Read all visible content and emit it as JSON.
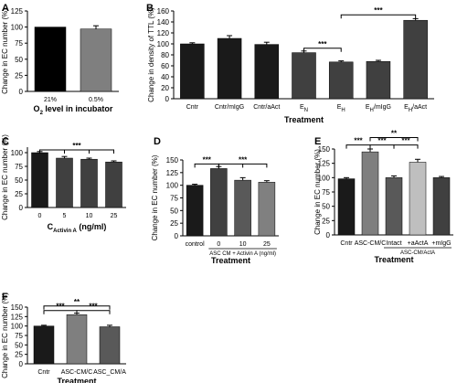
{
  "chart_data": [
    {
      "panel": "A",
      "type": "bar",
      "categories": [
        "21%",
        "0.5%"
      ],
      "values": [
        100,
        97
      ],
      "errors": [
        0,
        5
      ],
      "colors": [
        "#000000",
        "#7f7f7f"
      ],
      "ylabel": "Change in EC number (%)",
      "xlabel": "O2 level in incubator",
      "xlabel_parts": [
        "O",
        "2",
        " level in incubator"
      ],
      "ylim": [
        0,
        125
      ],
      "yticks": [
        0,
        25,
        50,
        75,
        100,
        125
      ],
      "significance": []
    },
    {
      "panel": "B",
      "type": "bar",
      "categories": [
        "Cntr",
        "Cntr/mIgG",
        "Cntr/aAct",
        "EN",
        "EH",
        "EH/mIgG",
        "EH/aAct"
      ],
      "category_parts": [
        [
          "Cntr",
          ""
        ],
        [
          "Cntr/mIgG",
          ""
        ],
        [
          "Cntr/aAct",
          ""
        ],
        [
          "E",
          "N"
        ],
        [
          "E",
          "H"
        ],
        [
          "E",
          "H",
          "/mIgG"
        ],
        [
          "E",
          "H",
          "/aAct"
        ]
      ],
      "values": [
        100,
        110,
        99,
        84,
        67,
        68,
        143
      ],
      "errors": [
        2,
        5,
        4,
        3,
        2,
        2,
        3
      ],
      "colors": [
        "#1a1a1a",
        "#1a1a1a",
        "#1a1a1a",
        "#404040",
        "#404040",
        "#404040",
        "#404040"
      ],
      "ylabel": "Change in density of TTL (%)",
      "xlabel": "Treatment",
      "ylim": [
        0,
        160
      ],
      "yticks": [
        0,
        20,
        40,
        60,
        80,
        100,
        120,
        140,
        160
      ],
      "significance": [
        {
          "from": 3,
          "to": 4,
          "label": "***",
          "y": 92
        },
        {
          "from": 4,
          "to": 6,
          "label": "***",
          "y": 153
        }
      ]
    },
    {
      "panel": "C",
      "type": "bar",
      "categories": [
        "0",
        "5",
        "10",
        "25"
      ],
      "values": [
        100,
        90,
        88,
        83
      ],
      "errors": [
        2,
        3,
        2,
        2
      ],
      "colors": [
        "#1a1a1a",
        "#404040",
        "#404040",
        "#404040"
      ],
      "ylabel": "Change in EC number (%)",
      "xlabel": "CActivin A (ng/ml)",
      "xlabel_parts": [
        "C",
        "Activin A",
        " (ng/ml)"
      ],
      "ylim": [
        0,
        110
      ],
      "yticks": [
        0,
        25,
        50,
        75,
        100
      ],
      "significance": [
        {
          "from": 0,
          "to": 3,
          "label": "***",
          "y": 105,
          "bracket": "multi"
        }
      ]
    },
    {
      "panel": "D",
      "type": "bar",
      "categories": [
        "control",
        "0",
        "10",
        "25"
      ],
      "group_label": "ASC CM + Activin A (ng/ml)",
      "values": [
        100,
        133,
        110,
        106
      ],
      "errors": [
        2,
        4,
        5,
        3
      ],
      "colors": [
        "#1a1a1a",
        "#404040",
        "#595959",
        "#808080"
      ],
      "ylabel": "Change in EC number (%)",
      "xlabel": "Treatment",
      "ylim": [
        0,
        150
      ],
      "yticks": [
        0,
        25,
        50,
        75,
        100,
        125,
        150
      ],
      "significance": [
        {
          "from": 0,
          "to": 1,
          "label": "***",
          "y": 142
        },
        {
          "from": 1,
          "to": 3,
          "label": "***",
          "y": 142,
          "bracket": "multi"
        }
      ]
    },
    {
      "panel": "E",
      "type": "bar",
      "categories": [
        "Cntr",
        "ASC-CM/C",
        "Intact",
        "+aActA",
        "+mIgG"
      ],
      "group_label": "ASC-CM/ActA",
      "values": [
        98,
        145,
        100,
        127,
        100
      ],
      "errors": [
        2,
        5,
        3,
        5,
        2
      ],
      "colors": [
        "#1a1a1a",
        "#7f7f7f",
        "#595959",
        "#bfbfbf",
        "#404040"
      ],
      "ylabel": "Change in EC number (%)",
      "xlabel": "Treatment",
      "ylim": [
        0,
        150
      ],
      "yticks": [
        0,
        25,
        50,
        75,
        100,
        125,
        150
      ],
      "significance": [
        {
          "from": 0,
          "to": 1,
          "label": "***",
          "y": 157
        },
        {
          "from": 1,
          "to": 2,
          "label": "***",
          "y": 157
        },
        {
          "from": 2,
          "to": 3,
          "label": "***",
          "y": 157
        },
        {
          "from": 1,
          "to": 3,
          "label": "**",
          "y": 170
        }
      ]
    },
    {
      "panel": "F",
      "type": "bar",
      "categories": [
        "Cntr",
        "ASC-CM/C",
        "ASC_CM/A"
      ],
      "values": [
        100,
        130,
        98
      ],
      "errors": [
        2,
        4,
        4
      ],
      "colors": [
        "#1a1a1a",
        "#7f7f7f",
        "#595959"
      ],
      "ylabel": "Change in EC number (%)",
      "xlabel": "Treatment",
      "ylim": [
        0,
        150
      ],
      "yticks": [
        0,
        25,
        50,
        75,
        100,
        125,
        150
      ],
      "significance": [
        {
          "from": 0,
          "to": 1,
          "label": "***",
          "y": 141
        },
        {
          "from": 1,
          "to": 2,
          "label": "***",
          "y": 141
        },
        {
          "from": 0,
          "to": 2,
          "label": "**",
          "y": 153
        }
      ]
    }
  ]
}
